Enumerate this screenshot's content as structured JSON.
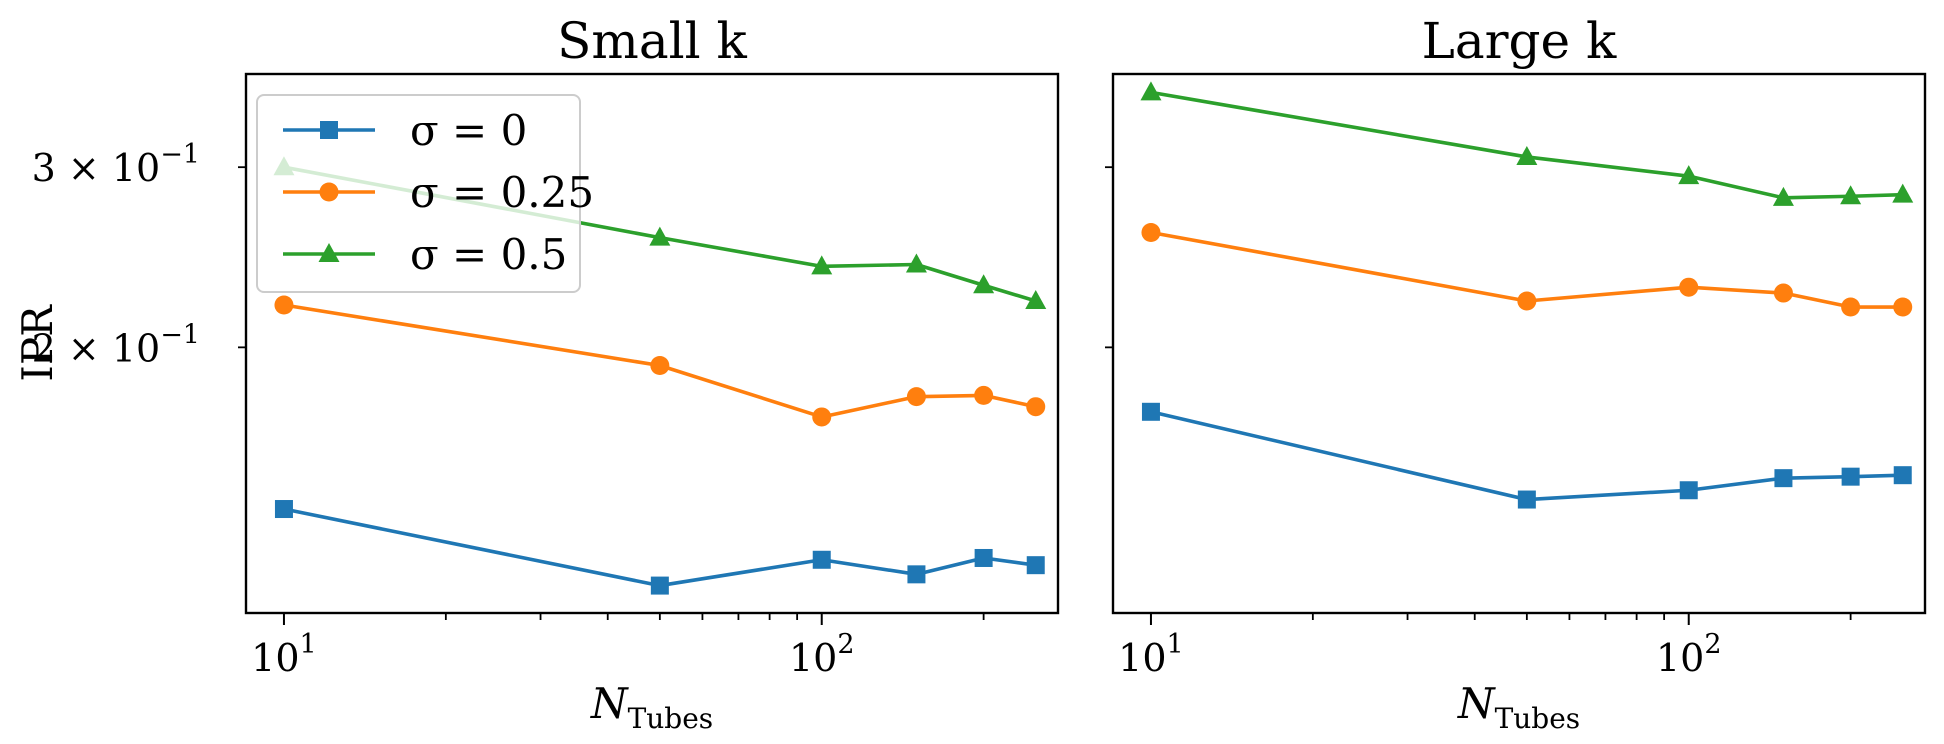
{
  "chart_data": [
    {
      "type": "line",
      "title": "Small k",
      "xlabel": "N_Tubes",
      "xlabel_main": "N",
      "xlabel_sub": "Tubes",
      "ylabel": "IPR",
      "xscale": "log",
      "yscale": "log",
      "xlim": [
        8.5,
        275
      ],
      "ylim": [
        0.11,
        0.37
      ],
      "x_ticks": [
        {
          "value": 10,
          "base": "10",
          "exp": "1"
        },
        {
          "value": 100,
          "base": "10",
          "exp": "2"
        }
      ],
      "y_ticks": [
        {
          "value": 0.3,
          "coef": "3 × 10",
          "exp": "−1"
        },
        {
          "value": 0.2,
          "coef": "2 × 10",
          "exp": "−1"
        }
      ],
      "legend": {
        "position": "upper-left"
      },
      "x": [
        10,
        50,
        100,
        150,
        200,
        250
      ],
      "series": [
        {
          "name": "σ = 0",
          "color": "#1f77b4",
          "marker": "square",
          "values": [
            0.139,
            0.117,
            0.124,
            0.12,
            0.1245,
            0.1225
          ]
        },
        {
          "name": "σ = 0.25",
          "color": "#ff7f0e",
          "marker": "circle",
          "values": [
            0.22,
            0.192,
            0.171,
            0.179,
            0.1795,
            0.175
          ]
        },
        {
          "name": "σ = 0.5",
          "color": "#2ca02c",
          "marker": "triangle",
          "values": [
            0.3,
            0.256,
            0.24,
            0.241,
            0.23,
            0.222
          ]
        }
      ]
    },
    {
      "type": "line",
      "title": "Large k",
      "xlabel": "N_Tubes",
      "xlabel_main": "N",
      "xlabel_sub": "Tubes",
      "xscale": "log",
      "yscale": "log",
      "xlim": [
        8.5,
        275
      ],
      "ylim": [
        0.11,
        0.37
      ],
      "x_ticks": [
        {
          "value": 10,
          "base": "10",
          "exp": "1"
        },
        {
          "value": 100,
          "base": "10",
          "exp": "2"
        }
      ],
      "x": [
        10,
        50,
        100,
        150,
        200,
        250
      ],
      "series": [
        {
          "name": "σ = 0",
          "color": "#1f77b4",
          "marker": "square",
          "values": [
            0.173,
            0.142,
            0.145,
            0.149,
            0.1495,
            0.15
          ]
        },
        {
          "name": "σ = 0.25",
          "color": "#ff7f0e",
          "marker": "circle",
          "values": [
            0.259,
            0.222,
            0.229,
            0.226,
            0.219,
            0.219
          ]
        },
        {
          "name": "σ = 0.5",
          "color": "#2ca02c",
          "marker": "triangle",
          "values": [
            0.355,
            0.307,
            0.294,
            0.28,
            0.281,
            0.282
          ]
        }
      ]
    }
  ]
}
